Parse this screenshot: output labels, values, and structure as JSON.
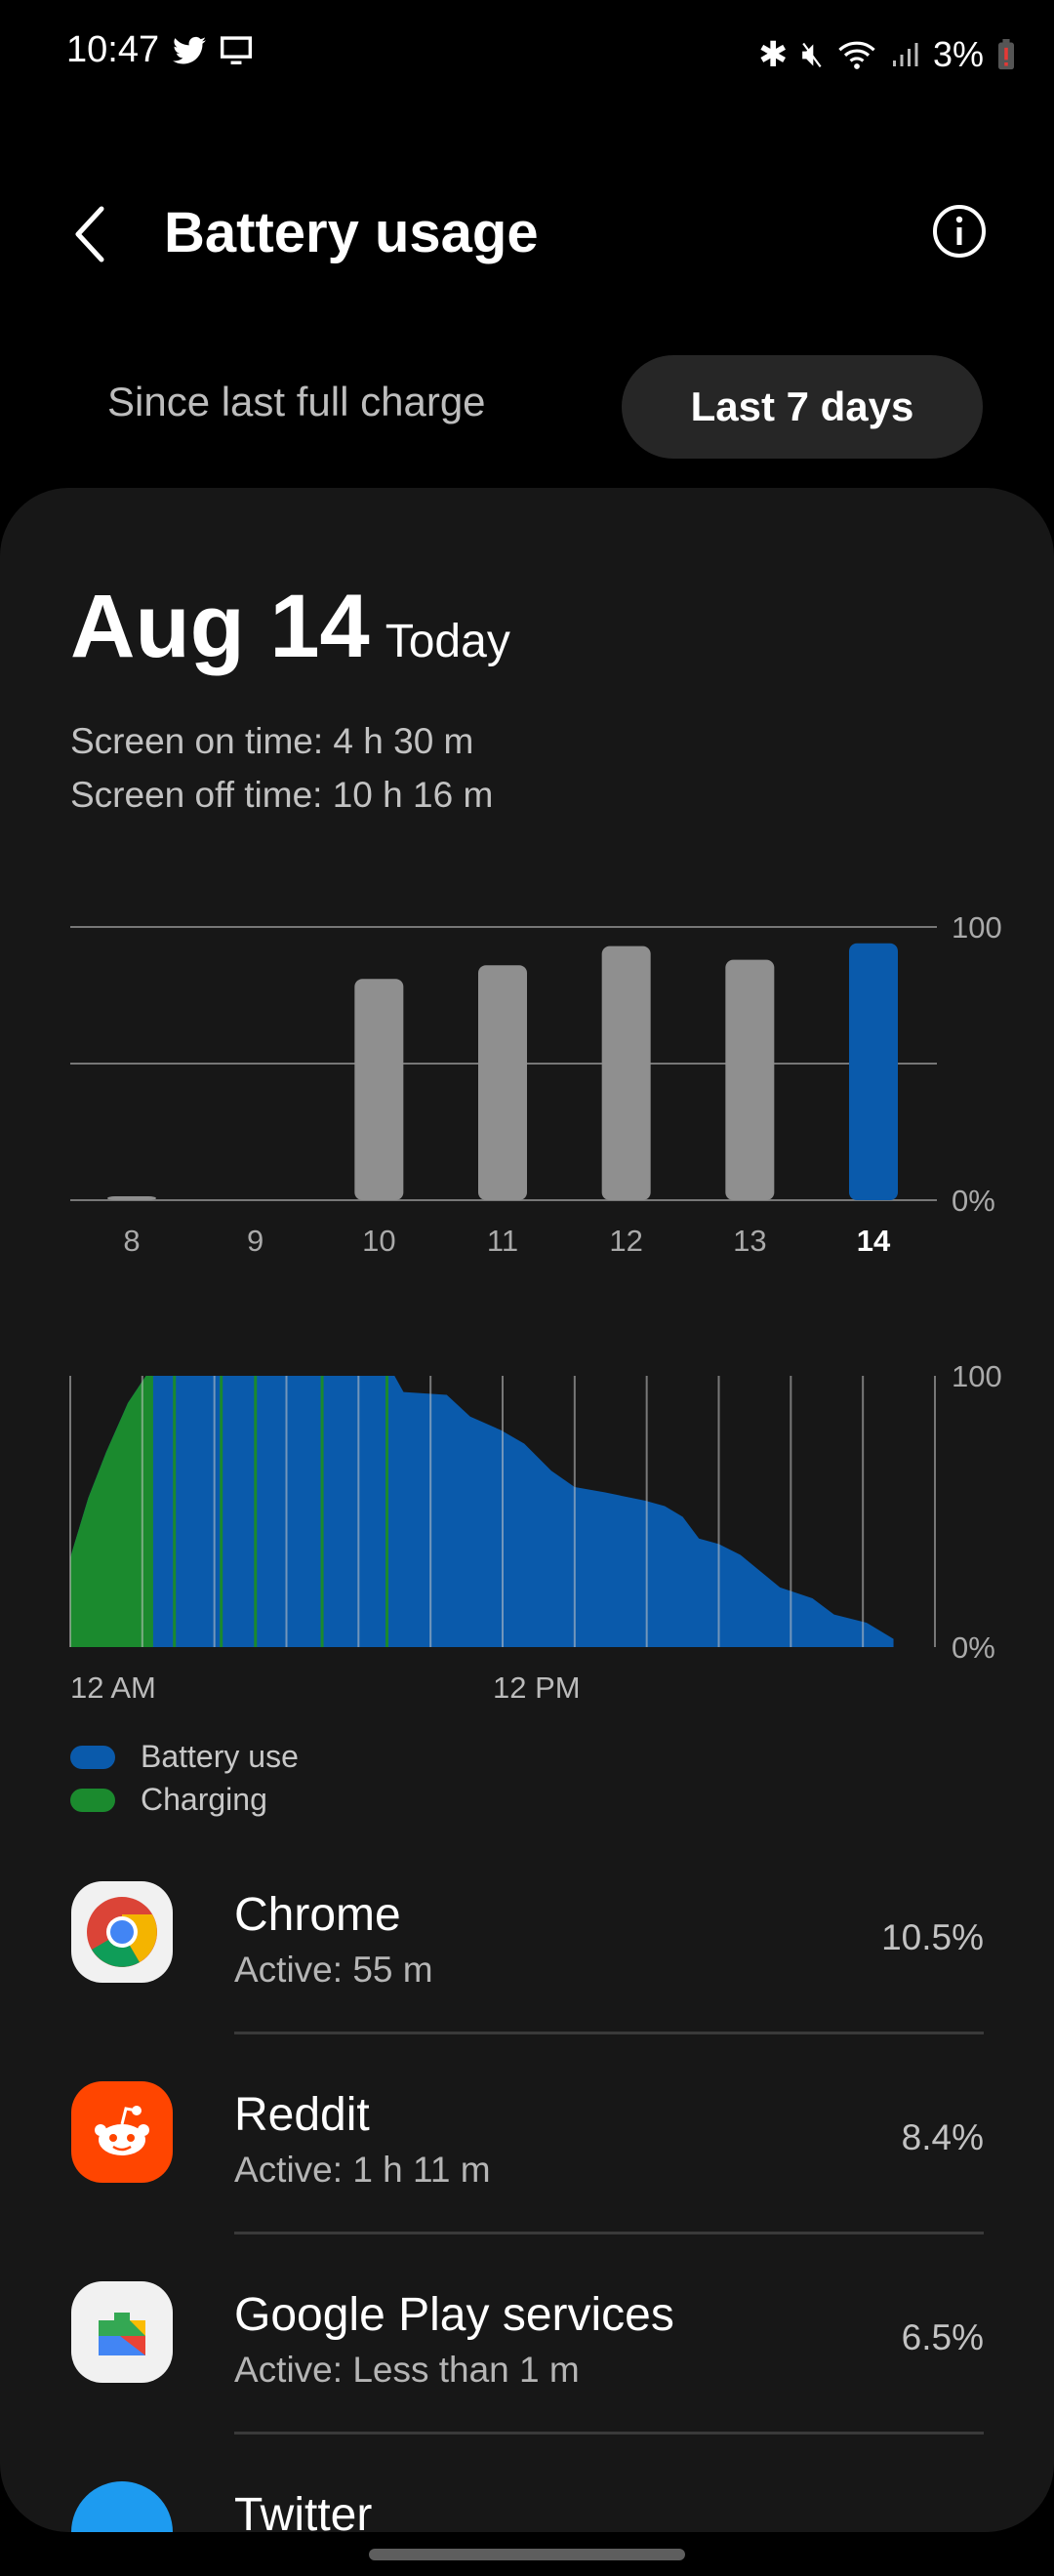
{
  "status_bar": {
    "time": "10:47",
    "battery": "3%",
    "icons": [
      "twitter-icon",
      "screen-cast-icon",
      "bluetooth-icon",
      "mute-icon",
      "wifi-icon",
      "signal-icon",
      "battery-low-icon"
    ]
  },
  "header": {
    "title": "Battery usage",
    "back_icon": "back-arrow-icon",
    "info_icon": "info-icon"
  },
  "tabs": [
    {
      "label": "Since last full charge",
      "selected": false
    },
    {
      "label": "Last 7 days",
      "selected": true
    }
  ],
  "summary": {
    "date": "Aug 14",
    "day_label": "Today",
    "screen_on": "Screen on time: 4 h 30 m",
    "screen_off": "Screen off time: 10 h 16 m"
  },
  "colors": {
    "accent": "#0a5aab",
    "bar_gray": "#8f8f8f",
    "charging": "#1b8a2e",
    "card": "#171717"
  },
  "chart_data": [
    {
      "type": "bar",
      "categories": [
        "8",
        "9",
        "10",
        "11",
        "12",
        "13",
        "14"
      ],
      "values": [
        1,
        0,
        81,
        86,
        93,
        88,
        94
      ],
      "selected": "14",
      "ylim": [
        0,
        100
      ],
      "y_ticks": [
        "100",
        "0%"
      ],
      "grid": true
    },
    {
      "type": "area",
      "x_unit": "hour of day",
      "xlim": [
        0,
        24
      ],
      "ylim": [
        0,
        100
      ],
      "x_tick_labels": [
        "12 AM",
        "12 PM"
      ],
      "y_ticks": [
        "100",
        "0%"
      ],
      "points": [
        [
          0,
          33
        ],
        [
          0.5,
          55
        ],
        [
          1,
          72
        ],
        [
          1.6,
          90
        ],
        [
          2.1,
          100
        ],
        [
          9.0,
          100
        ],
        [
          9.25,
          94
        ],
        [
          10.45,
          93
        ],
        [
          11.1,
          85
        ],
        [
          11.95,
          80
        ],
        [
          12.6,
          75
        ],
        [
          13.35,
          65
        ],
        [
          14.0,
          59
        ],
        [
          14.85,
          57
        ],
        [
          15.95,
          54
        ],
        [
          16.5,
          52
        ],
        [
          17.0,
          48
        ],
        [
          17.45,
          40
        ],
        [
          18.0,
          38
        ],
        [
          18.6,
          34
        ],
        [
          19.7,
          22
        ],
        [
          20.6,
          18
        ],
        [
          21.2,
          12
        ],
        [
          22.1,
          9
        ],
        [
          22.85,
          3
        ]
      ],
      "charging_segments": [
        [
          0,
          2.3
        ],
        [
          2.85,
          2.92
        ],
        [
          4.15,
          4.22
        ],
        [
          5.1,
          5.17
        ],
        [
          6.95,
          7.02
        ],
        [
          8.75,
          8.82
        ]
      ],
      "legend": [
        {
          "label": "Battery use",
          "color": "#0a5aab"
        },
        {
          "label": "Charging",
          "color": "#1b8a2e"
        }
      ]
    }
  ],
  "apps": [
    {
      "name": "Chrome",
      "active": "Active: 55 m",
      "percent": "10.5%",
      "icon": "chrome-icon"
    },
    {
      "name": "Reddit",
      "active": "Active: 1 h 11 m",
      "percent": "8.4%",
      "icon": "reddit-icon"
    },
    {
      "name": "Google Play services",
      "active": "Active: Less than 1 m",
      "percent": "6.5%",
      "icon": "play-services-icon"
    },
    {
      "name": "Twitter",
      "active": "",
      "percent": "",
      "icon": "twitter-icon"
    }
  ]
}
